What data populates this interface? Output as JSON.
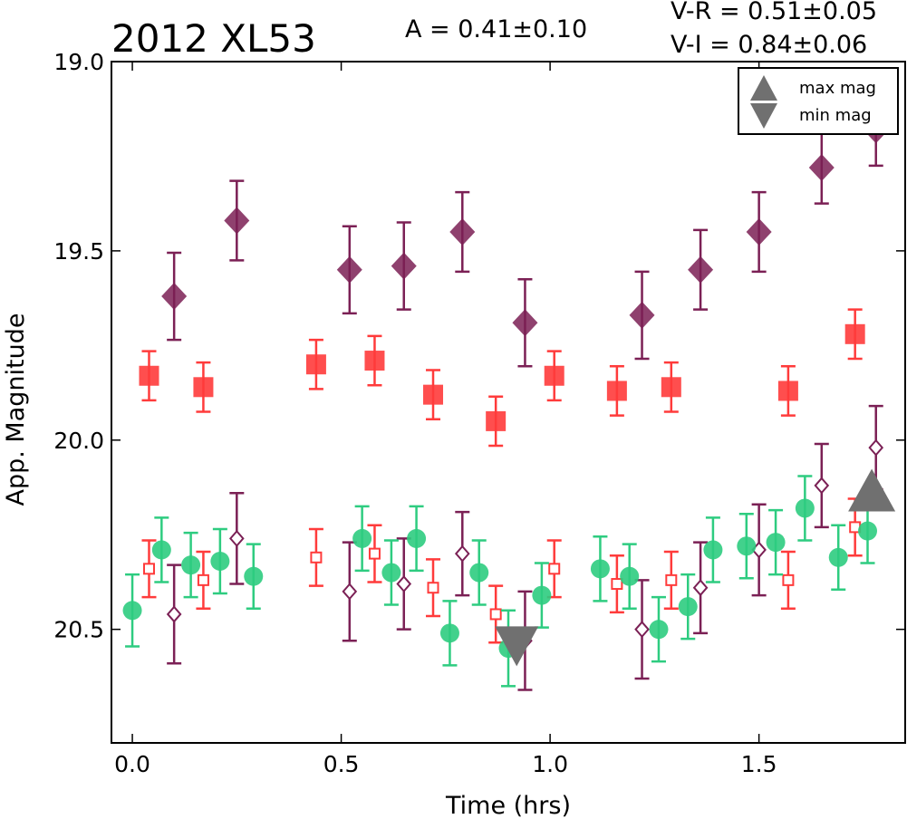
{
  "chart_data": {
    "type": "scatter",
    "title": "2012 XL53",
    "annotations": {
      "amplitude": "A  = 0.41±0.10",
      "v_r": "V-R = 0.51±0.05",
      "v_i": "V-I  = 0.84±0.06"
    },
    "xlabel": "Time (hrs)",
    "ylabel": "App. Magnitude",
    "xlim": [
      -0.05,
      1.85
    ],
    "ylim": [
      20.8,
      19.0
    ],
    "y_inverted": true,
    "xticks": [
      "0.0",
      "0.5",
      "1.0",
      "1.5"
    ],
    "xtick_values": [
      0.0,
      0.5,
      1.0,
      1.5
    ],
    "yticks": [
      "19.0",
      "19.5",
      "20.0",
      "20.5"
    ],
    "ytick_values": [
      19.0,
      19.5,
      20.0,
      20.5
    ],
    "grid": false,
    "legend": {
      "position": "top-right",
      "entries": [
        {
          "label": "max mag",
          "marker": "triangle-up"
        },
        {
          "label": "min mag",
          "marker": "triangle-down"
        }
      ]
    },
    "colors": {
      "purple": "#7b2055",
      "red": "#ff3b3b",
      "green": "#2ecc80",
      "gray": "#707070"
    },
    "series": [
      {
        "marker": "diamond-filled",
        "color": "#7b2055",
        "points": [
          {
            "x": 0.1,
            "y": 19.62,
            "err": 0.115
          },
          {
            "x": 0.25,
            "y": 19.42,
            "err": 0.105
          },
          {
            "x": 0.52,
            "y": 19.55,
            "err": 0.115
          },
          {
            "x": 0.65,
            "y": 19.54,
            "err": 0.115
          },
          {
            "x": 0.79,
            "y": 19.45,
            "err": 0.105
          },
          {
            "x": 0.94,
            "y": 19.69,
            "err": 0.115
          },
          {
            "x": 1.22,
            "y": 19.67,
            "err": 0.115
          },
          {
            "x": 1.36,
            "y": 19.55,
            "err": 0.105
          },
          {
            "x": 1.5,
            "y": 19.45,
            "err": 0.105
          },
          {
            "x": 1.65,
            "y": 19.28,
            "err": 0.095
          },
          {
            "x": 1.78,
            "y": 19.18,
            "err": 0.095
          }
        ]
      },
      {
        "marker": "square-filled",
        "color": "#ff3b3b",
        "points": [
          {
            "x": 0.04,
            "y": 19.83,
            "err": 0.065
          },
          {
            "x": 0.17,
            "y": 19.86,
            "err": 0.065
          },
          {
            "x": 0.44,
            "y": 19.8,
            "err": 0.065
          },
          {
            "x": 0.58,
            "y": 19.79,
            "err": 0.065
          },
          {
            "x": 0.72,
            "y": 19.88,
            "err": 0.065
          },
          {
            "x": 0.87,
            "y": 19.95,
            "err": 0.065
          },
          {
            "x": 1.01,
            "y": 19.83,
            "err": 0.065
          },
          {
            "x": 1.16,
            "y": 19.87,
            "err": 0.065
          },
          {
            "x": 1.29,
            "y": 19.86,
            "err": 0.065
          },
          {
            "x": 1.57,
            "y": 19.87,
            "err": 0.065
          },
          {
            "x": 1.73,
            "y": 19.72,
            "err": 0.065
          }
        ]
      },
      {
        "marker": "circle-filled",
        "color": "#2ecc80",
        "points": [
          {
            "x": 0.0,
            "y": 20.45,
            "err": 0.095
          },
          {
            "x": 0.07,
            "y": 20.29,
            "err": 0.085
          },
          {
            "x": 0.14,
            "y": 20.33,
            "err": 0.085
          },
          {
            "x": 0.21,
            "y": 20.32,
            "err": 0.085
          },
          {
            "x": 0.29,
            "y": 20.36,
            "err": 0.085
          },
          {
            "x": 0.55,
            "y": 20.26,
            "err": 0.085
          },
          {
            "x": 0.62,
            "y": 20.35,
            "err": 0.085
          },
          {
            "x": 0.68,
            "y": 20.26,
            "err": 0.085
          },
          {
            "x": 0.76,
            "y": 20.51,
            "err": 0.085
          },
          {
            "x": 0.83,
            "y": 20.35,
            "err": 0.085
          },
          {
            "x": 0.9,
            "y": 20.55,
            "err": 0.1
          },
          {
            "x": 0.98,
            "y": 20.41,
            "err": 0.085
          },
          {
            "x": 1.12,
            "y": 20.34,
            "err": 0.085
          },
          {
            "x": 1.19,
            "y": 20.36,
            "err": 0.085
          },
          {
            "x": 1.26,
            "y": 20.5,
            "err": 0.085
          },
          {
            "x": 1.33,
            "y": 20.44,
            "err": 0.085
          },
          {
            "x": 1.39,
            "y": 20.29,
            "err": 0.085
          },
          {
            "x": 1.47,
            "y": 20.28,
            "err": 0.085
          },
          {
            "x": 1.54,
            "y": 20.27,
            "err": 0.085
          },
          {
            "x": 1.61,
            "y": 20.18,
            "err": 0.085
          },
          {
            "x": 1.69,
            "y": 20.31,
            "err": 0.085
          },
          {
            "x": 1.76,
            "y": 20.24,
            "err": 0.085
          }
        ]
      },
      {
        "marker": "square-open",
        "color": "#ff3b3b",
        "points": [
          {
            "x": 0.04,
            "y": 20.34,
            "err": 0.075
          },
          {
            "x": 0.17,
            "y": 20.37,
            "err": 0.075
          },
          {
            "x": 0.44,
            "y": 20.31,
            "err": 0.075
          },
          {
            "x": 0.58,
            "y": 20.3,
            "err": 0.075
          },
          {
            "x": 0.72,
            "y": 20.39,
            "err": 0.075
          },
          {
            "x": 0.87,
            "y": 20.46,
            "err": 0.075
          },
          {
            "x": 1.01,
            "y": 20.34,
            "err": 0.075
          },
          {
            "x": 1.16,
            "y": 20.38,
            "err": 0.075
          },
          {
            "x": 1.29,
            "y": 20.37,
            "err": 0.075
          },
          {
            "x": 1.57,
            "y": 20.37,
            "err": 0.075
          },
          {
            "x": 1.73,
            "y": 20.23,
            "err": 0.075
          }
        ]
      },
      {
        "marker": "diamond-open",
        "color": "#7b2055",
        "points": [
          {
            "x": 0.1,
            "y": 20.46,
            "err": 0.13
          },
          {
            "x": 0.25,
            "y": 20.26,
            "err": 0.12
          },
          {
            "x": 0.52,
            "y": 20.4,
            "err": 0.13
          },
          {
            "x": 0.65,
            "y": 20.38,
            "err": 0.12
          },
          {
            "x": 0.79,
            "y": 20.3,
            "err": 0.11
          },
          {
            "x": 0.94,
            "y": 20.53,
            "err": 0.13
          },
          {
            "x": 1.22,
            "y": 20.5,
            "err": 0.13
          },
          {
            "x": 1.36,
            "y": 20.39,
            "err": 0.12
          },
          {
            "x": 1.5,
            "y": 20.29,
            "err": 0.12
          },
          {
            "x": 1.65,
            "y": 20.12,
            "err": 0.11
          },
          {
            "x": 1.78,
            "y": 20.02,
            "err": 0.11
          }
        ]
      },
      {
        "marker": "triangle-up",
        "color": "#707070",
        "label": "max mag",
        "points": [
          {
            "x": 1.77,
            "y": 20.15
          }
        ]
      },
      {
        "marker": "triangle-down",
        "color": "#707070",
        "label": "min mag",
        "points": [
          {
            "x": 0.92,
            "y": 20.54
          }
        ]
      }
    ]
  }
}
